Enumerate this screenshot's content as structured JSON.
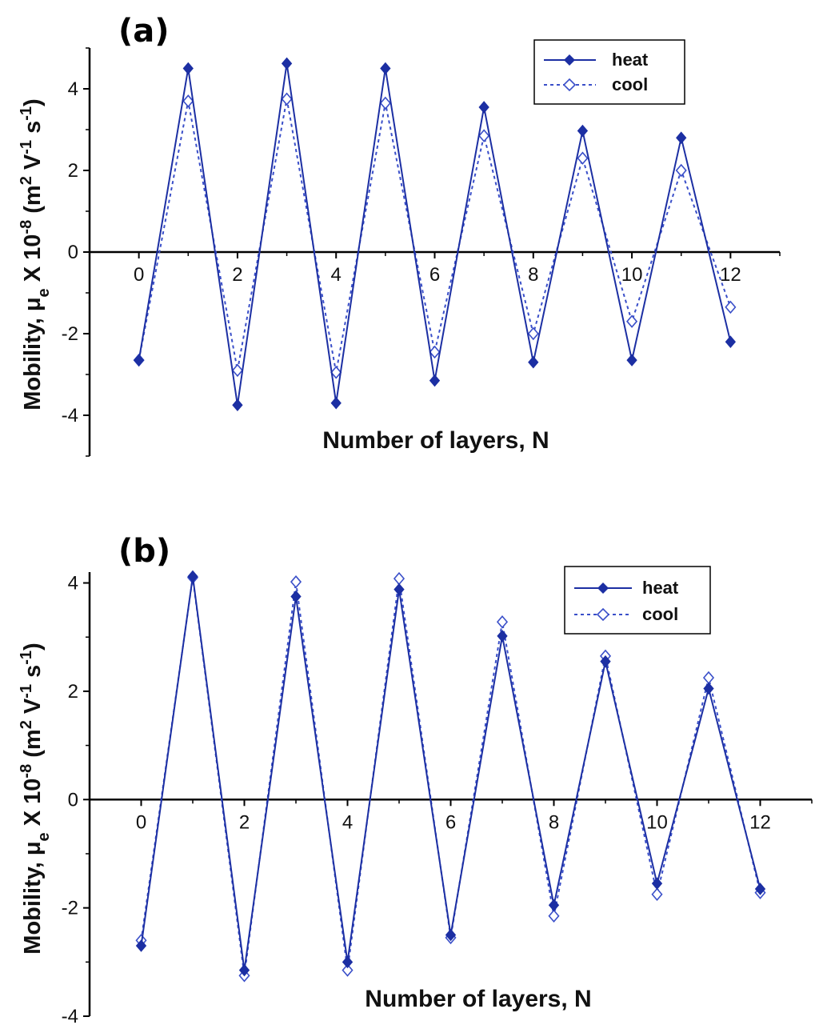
{
  "colors": {
    "heat": "#1c2fa3",
    "cool": "#3a4fc9",
    "axis": "#000000"
  },
  "chart_data": [
    {
      "type": "line",
      "panel_label": "(a)",
      "xlabel": "Number of layers, N",
      "ylabel": "Mobility, μe X 10-8 (m2 V-1 s-1)",
      "ylabel_parts": {
        "prefix": "Mobility, μ",
        "sub": "e",
        "mid": " X 10",
        "exp": "-8",
        "unit_open": " (m",
        "u1": "2",
        "u2": " V",
        "u3": "-1",
        "u4": " s",
        "u5": "-1",
        "unit_close": ")"
      },
      "xlim": [
        -1,
        13
      ],
      "ylim": [
        -5,
        5
      ],
      "xticks": [
        0,
        2,
        4,
        6,
        8,
        10,
        12
      ],
      "xtick_labels": [
        "0",
        "2",
        "4",
        "6",
        "8",
        "10",
        "12"
      ],
      "yticks": [
        -4,
        -2,
        0,
        2,
        4
      ],
      "ytick_labels": [
        "-4",
        "-2",
        "0",
        "2",
        "4"
      ],
      "legend": "top-right",
      "grid": false,
      "x": [
        0,
        1,
        2,
        3,
        4,
        5,
        6,
        7,
        8,
        9,
        10,
        11,
        12
      ],
      "series": [
        {
          "name": "heat",
          "style": "solid",
          "marker": "filled-diamond",
          "values": [
            -2.65,
            4.5,
            -3.75,
            4.62,
            -3.7,
            4.5,
            -3.15,
            3.55,
            -2.7,
            2.97,
            -2.65,
            2.8,
            -2.2
          ]
        },
        {
          "name": "cool",
          "style": "dotted",
          "marker": "open-diamond",
          "values": [
            -2.65,
            3.7,
            -2.9,
            3.75,
            -2.95,
            3.65,
            -2.45,
            2.85,
            -2.0,
            2.3,
            -1.7,
            2.0,
            -1.35
          ]
        }
      ]
    },
    {
      "type": "line",
      "panel_label": "(b)",
      "xlabel": "Number of layers, N",
      "ylabel": "Mobility, μe X 10-8 (m2 V-1 s-1)",
      "ylabel_parts": {
        "prefix": "Mobility, μ",
        "sub": "e",
        "mid": " X 10",
        "exp": "-8",
        "unit_open": " (m",
        "u1": "2",
        "u2": " V",
        "u3": "-1",
        "u4": " s",
        "u5": "-1",
        "unit_close": ")"
      },
      "xlim": [
        -1,
        13
      ],
      "ylim": [
        -4,
        4.2
      ],
      "xticks": [
        0,
        2,
        4,
        6,
        8,
        10,
        12
      ],
      "xtick_labels": [
        "0",
        "2",
        "4",
        "6",
        "8",
        "10",
        "12"
      ],
      "yticks": [
        -4,
        -2,
        0,
        2,
        4
      ],
      "ytick_labels": [
        "-4",
        "-2",
        "0",
        "2",
        "4"
      ],
      "legend": "top-right",
      "grid": false,
      "x": [
        0,
        1,
        2,
        3,
        4,
        5,
        6,
        7,
        8,
        9,
        10,
        11,
        12
      ],
      "series": [
        {
          "name": "heat",
          "style": "solid",
          "marker": "filled-diamond",
          "values": [
            -2.7,
            4.12,
            -3.15,
            3.75,
            -3.0,
            3.88,
            -2.5,
            3.02,
            -1.95,
            2.55,
            -1.55,
            2.05,
            -1.65
          ]
        },
        {
          "name": "cool",
          "style": "dotted",
          "marker": "open-diamond",
          "values": [
            -2.6,
            4.1,
            -3.25,
            4.02,
            -3.15,
            4.08,
            -2.55,
            3.28,
            -2.15,
            2.65,
            -1.75,
            2.25,
            -1.72
          ]
        }
      ]
    }
  ]
}
